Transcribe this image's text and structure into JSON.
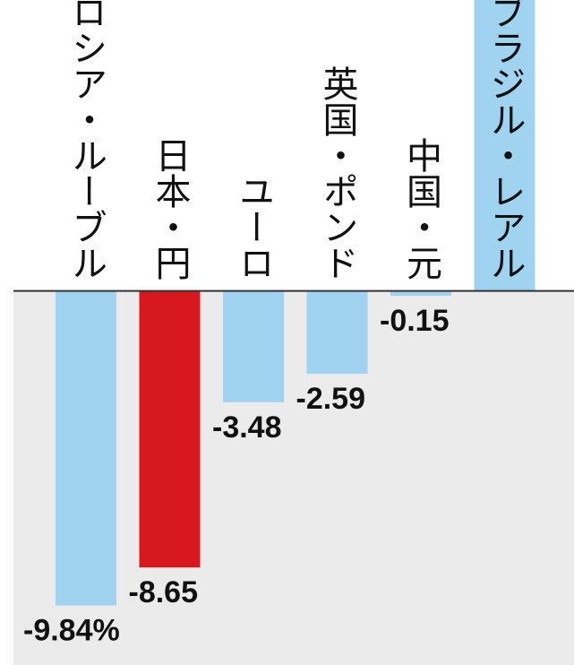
{
  "chart_data": {
    "type": "bar",
    "categories": [
      "ロシア・ルーブル",
      "日本・円",
      "ユーロ",
      "英国・ポンド",
      "中国・元",
      "ブラジル・レアル"
    ],
    "values": [
      -9.84,
      -8.65,
      -3.48,
      -2.59,
      -0.15,
      9.1
    ],
    "value_labels": [
      "-9.84%",
      "-8.65",
      "-3.48",
      "-2.59",
      "-0.15",
      null
    ],
    "colors": [
      "#9fd3f0",
      "#d7191f",
      "#9fd3f0",
      "#9fd3f0",
      "#9fd3f0",
      "#9fd3f0"
    ],
    "ylim": [
      -11.7,
      9.1
    ]
  }
}
